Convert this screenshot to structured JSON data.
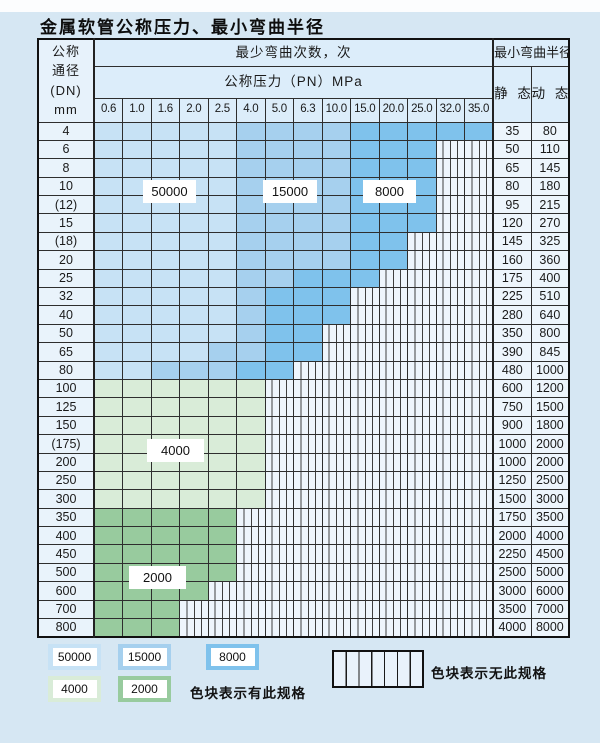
{
  "page": {
    "title": "金属软管公称压力、最小弯曲半径"
  },
  "colors": {
    "band_50000": "#c7e2f5",
    "band_15000": "#a6d0ee",
    "band_8000": "#7fc2ec",
    "band_4000": "#d9ecd8",
    "band_2000": "#98cb9e"
  },
  "table": {
    "header": {
      "dn_lines": [
        "公称",
        "通径",
        "(DN)",
        "mm"
      ],
      "bend_cycles": "最少弯曲次数，次",
      "pressure": "公称压力（PN）MPa",
      "min_radius": "最小弯曲半径",
      "static": "静 态",
      "dynamic": "动 态",
      "pressures": [
        "0.6",
        "1.0",
        "1.6",
        "2.0",
        "2.5",
        "4.0",
        "5.0",
        "6.3",
        "10.0",
        "15.0",
        "20.0",
        "25.0",
        "32.0",
        "35.0"
      ]
    },
    "zone_labels": [
      "50000",
      "15000",
      "8000",
      "4000",
      "2000"
    ],
    "cell_legend": {
      "L": "50000 cycles",
      "M": "15000 cycles",
      "D": "8000 cycles",
      "G4": "4000 cycles",
      "G2": "2000 cycles",
      "N": "no such spec"
    },
    "rows": [
      {
        "dn": "4",
        "static": "35",
        "dynamic": "80",
        "cells": [
          "L",
          "L",
          "L",
          "L",
          "L",
          "M",
          "M",
          "M",
          "M",
          "D",
          "D",
          "D",
          "D",
          "D"
        ]
      },
      {
        "dn": "6",
        "static": "50",
        "dynamic": "110",
        "cells": [
          "L",
          "L",
          "L",
          "L",
          "L",
          "M",
          "M",
          "M",
          "M",
          "D",
          "D",
          "D",
          "N",
          "N"
        ]
      },
      {
        "dn": "8",
        "static": "65",
        "dynamic": "145",
        "cells": [
          "L",
          "L",
          "L",
          "L",
          "L",
          "M",
          "M",
          "M",
          "M",
          "D",
          "D",
          "D",
          "N",
          "N"
        ]
      },
      {
        "dn": "10",
        "static": "80",
        "dynamic": "180",
        "cells": [
          "L",
          "L",
          "L",
          "L",
          "L",
          "M",
          "M",
          "M",
          "M",
          "D",
          "D",
          "D",
          "N",
          "N"
        ]
      },
      {
        "dn": "(12)",
        "static": "95",
        "dynamic": "215",
        "cells": [
          "L",
          "L",
          "L",
          "L",
          "L",
          "M",
          "M",
          "M",
          "M",
          "D",
          "D",
          "D",
          "N",
          "N"
        ]
      },
      {
        "dn": "15",
        "static": "120",
        "dynamic": "270",
        "cells": [
          "L",
          "L",
          "L",
          "L",
          "L",
          "M",
          "M",
          "M",
          "M",
          "D",
          "D",
          "D",
          "N",
          "N"
        ]
      },
      {
        "dn": "(18)",
        "static": "145",
        "dynamic": "325",
        "cells": [
          "L",
          "L",
          "L",
          "L",
          "L",
          "M",
          "M",
          "M",
          "M",
          "D",
          "D",
          "N",
          "N",
          "N"
        ]
      },
      {
        "dn": "20",
        "static": "160",
        "dynamic": "360",
        "cells": [
          "L",
          "L",
          "L",
          "L",
          "L",
          "M",
          "M",
          "M",
          "M",
          "D",
          "D",
          "N",
          "N",
          "N"
        ]
      },
      {
        "dn": "25",
        "static": "175",
        "dynamic": "400",
        "cells": [
          "L",
          "L",
          "L",
          "L",
          "L",
          "M",
          "M",
          "D",
          "D",
          "D",
          "N",
          "N",
          "N",
          "N"
        ]
      },
      {
        "dn": "32",
        "static": "225",
        "dynamic": "510",
        "cells": [
          "L",
          "L",
          "L",
          "L",
          "L",
          "M",
          "D",
          "D",
          "D",
          "N",
          "N",
          "N",
          "N",
          "N"
        ]
      },
      {
        "dn": "40",
        "static": "280",
        "dynamic": "640",
        "cells": [
          "L",
          "L",
          "L",
          "L",
          "L",
          "M",
          "D",
          "D",
          "D",
          "N",
          "N",
          "N",
          "N",
          "N"
        ]
      },
      {
        "dn": "50",
        "static": "350",
        "dynamic": "800",
        "cells": [
          "L",
          "L",
          "L",
          "L",
          "L",
          "M",
          "D",
          "D",
          "N",
          "N",
          "N",
          "N",
          "N",
          "N"
        ]
      },
      {
        "dn": "65",
        "static": "390",
        "dynamic": "845",
        "cells": [
          "L",
          "L",
          "L",
          "L",
          "M",
          "M",
          "D",
          "D",
          "N",
          "N",
          "N",
          "N",
          "N",
          "N"
        ]
      },
      {
        "dn": "80",
        "static": "480",
        "dynamic": "1000",
        "cells": [
          "L",
          "L",
          "M",
          "M",
          "M",
          "D",
          "D",
          "N",
          "N",
          "N",
          "N",
          "N",
          "N",
          "N"
        ]
      },
      {
        "dn": "100",
        "static": "600",
        "dynamic": "1200",
        "cells": [
          "G4",
          "G4",
          "G4",
          "G4",
          "G4",
          "G4",
          "N",
          "N",
          "N",
          "N",
          "N",
          "N",
          "N",
          "N"
        ]
      },
      {
        "dn": "125",
        "static": "750",
        "dynamic": "1500",
        "cells": [
          "G4",
          "G4",
          "G4",
          "G4",
          "G4",
          "G4",
          "N",
          "N",
          "N",
          "N",
          "N",
          "N",
          "N",
          "N"
        ]
      },
      {
        "dn": "150",
        "static": "900",
        "dynamic": "1800",
        "cells": [
          "G4",
          "G4",
          "G4",
          "G4",
          "G4",
          "G4",
          "N",
          "N",
          "N",
          "N",
          "N",
          "N",
          "N",
          "N"
        ]
      },
      {
        "dn": "(175)",
        "static": "1000",
        "dynamic": "2000",
        "cells": [
          "G4",
          "G4",
          "G4",
          "G4",
          "G4",
          "G4",
          "N",
          "N",
          "N",
          "N",
          "N",
          "N",
          "N",
          "N"
        ]
      },
      {
        "dn": "200",
        "static": "1000",
        "dynamic": "2000",
        "cells": [
          "G4",
          "G4",
          "G4",
          "G4",
          "G4",
          "G4",
          "N",
          "N",
          "N",
          "N",
          "N",
          "N",
          "N",
          "N"
        ]
      },
      {
        "dn": "250",
        "static": "1250",
        "dynamic": "2500",
        "cells": [
          "G4",
          "G4",
          "G4",
          "G4",
          "G4",
          "G4",
          "N",
          "N",
          "N",
          "N",
          "N",
          "N",
          "N",
          "N"
        ]
      },
      {
        "dn": "300",
        "static": "1500",
        "dynamic": "3000",
        "cells": [
          "G4",
          "G4",
          "G4",
          "G4",
          "G4",
          "G4",
          "N",
          "N",
          "N",
          "N",
          "N",
          "N",
          "N",
          "N"
        ]
      },
      {
        "dn": "350",
        "static": "1750",
        "dynamic": "3500",
        "cells": [
          "G2",
          "G2",
          "G2",
          "G2",
          "G2",
          "N",
          "N",
          "N",
          "N",
          "N",
          "N",
          "N",
          "N",
          "N"
        ]
      },
      {
        "dn": "400",
        "static": "2000",
        "dynamic": "4000",
        "cells": [
          "G2",
          "G2",
          "G2",
          "G2",
          "G2",
          "N",
          "N",
          "N",
          "N",
          "N",
          "N",
          "N",
          "N",
          "N"
        ]
      },
      {
        "dn": "450",
        "static": "2250",
        "dynamic": "4500",
        "cells": [
          "G2",
          "G2",
          "G2",
          "G2",
          "G2",
          "N",
          "N",
          "N",
          "N",
          "N",
          "N",
          "N",
          "N",
          "N"
        ]
      },
      {
        "dn": "500",
        "static": "2500",
        "dynamic": "5000",
        "cells": [
          "G2",
          "G2",
          "G2",
          "G2",
          "G2",
          "N",
          "N",
          "N",
          "N",
          "N",
          "N",
          "N",
          "N",
          "N"
        ]
      },
      {
        "dn": "600",
        "static": "3000",
        "dynamic": "6000",
        "cells": [
          "G2",
          "G2",
          "G2",
          "G2",
          "N",
          "N",
          "N",
          "N",
          "N",
          "N",
          "N",
          "N",
          "N",
          "N"
        ]
      },
      {
        "dn": "700",
        "static": "3500",
        "dynamic": "7000",
        "cells": [
          "G2",
          "G2",
          "G2",
          "N",
          "N",
          "N",
          "N",
          "N",
          "N",
          "N",
          "N",
          "N",
          "N",
          "N"
        ]
      },
      {
        "dn": "800",
        "static": "4000",
        "dynamic": "8000",
        "cells": [
          "G2",
          "G2",
          "G2",
          "N",
          "N",
          "N",
          "N",
          "N",
          "N",
          "N",
          "N",
          "N",
          "N",
          "N"
        ]
      }
    ]
  },
  "legend": {
    "items": [
      {
        "label": "50000"
      },
      {
        "label": "15000"
      },
      {
        "label": "8000"
      },
      {
        "label": "4000"
      },
      {
        "label": "2000"
      }
    ],
    "available_note": "色块表示有此规格",
    "unavailable_note": "色块表示无此规格"
  }
}
